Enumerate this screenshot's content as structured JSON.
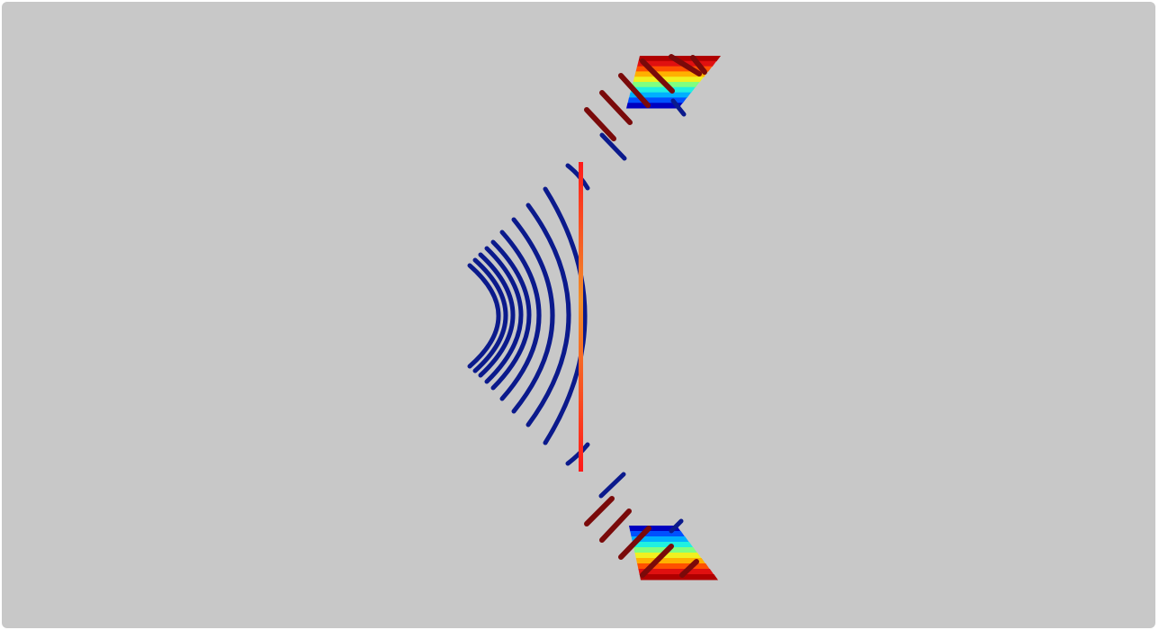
{
  "colors": {
    "background": "#c8c8c8",
    "arc_color": "#0b1a8c",
    "dark_red": "#7a0a0a",
    "interface_top": "#ff1a1a",
    "interface_mid": "#f0902a",
    "interface_bottom": "#ff1a1a",
    "jet_colormap": [
      "#0000c0",
      "#0050ff",
      "#00b0ff",
      "#20f0e0",
      "#80ff80",
      "#f0f020",
      "#ffb000",
      "#ff5000",
      "#e01010",
      "#b00000"
    ]
  },
  "icons": {
    "wave_arcs": "concentric-arcs-icon",
    "interface": "vertical-line-icon",
    "prism_top": "color-gradient-parallelogram-icon",
    "prism_bottom": "color-gradient-parallelogram-icon"
  }
}
